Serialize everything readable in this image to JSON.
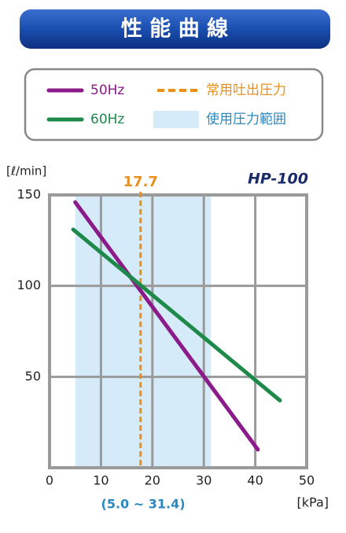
{
  "header": {
    "title": "性 能 曲 線"
  },
  "chart_data": {
    "type": "line",
    "model": "HP-100",
    "y_label": "[ℓ/min]",
    "x_label": "[kPa]",
    "xlim": [
      0,
      50
    ],
    "xticks": [
      0,
      10,
      20,
      30,
      40,
      50
    ],
    "ylim": [
      0,
      150
    ],
    "yticks": [
      50,
      100,
      150
    ],
    "grid": true,
    "series": [
      {
        "name": "50Hz",
        "color": "#8b1a8a",
        "x": [
          5,
          40.5
        ],
        "values": [
          146,
          10
        ]
      },
      {
        "name": "60Hz",
        "color": "#1e8a4a",
        "x": [
          4.6,
          44.8
        ],
        "values": [
          131,
          37
        ]
      }
    ],
    "operating_pressure": {
      "name": "常用吐出圧力",
      "value": 17.7,
      "color": "#e8901e"
    },
    "operating_range": {
      "name": "使用圧力範囲",
      "values": [
        5.0,
        31.4
      ],
      "label": "(5.0 ~ 31.4)",
      "color": "#d6ebf9",
      "text_color": "#2a8ac0"
    }
  }
}
